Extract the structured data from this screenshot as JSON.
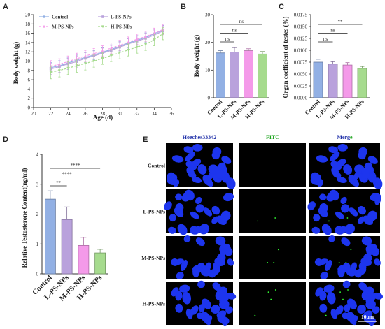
{
  "colors": {
    "control": "#92b0e4",
    "lps": "#b9a2dc",
    "mps": "#f49ae9",
    "hps": "#a6db8e",
    "cell_blue": "#1d35ee",
    "fitc_green": "#30ff30",
    "hoechst_title": "#1f2fa8",
    "fitc_title": "#1aa31a"
  },
  "chart_data": [
    {
      "panel": "A",
      "type": "line",
      "xlabel": "Age (d)",
      "ylabel": "Body weight (g)",
      "xlim": [
        20,
        36
      ],
      "ylim": [
        0,
        20
      ],
      "xticks": [
        20,
        22,
        24,
        26,
        28,
        30,
        32,
        34,
        36
      ],
      "yticks": [
        0,
        2,
        4,
        6,
        8,
        10,
        12,
        14,
        16,
        18,
        20
      ],
      "x": [
        22,
        23,
        24,
        25,
        26,
        27,
        28,
        29,
        30,
        31,
        32,
        33,
        34,
        35
      ],
      "legend_placement": "top-left",
      "series": [
        {
          "name": "Control",
          "key": "control",
          "marker": "circle",
          "dash": "",
          "values": [
            8.6,
            9.0,
            9.6,
            10.2,
            10.8,
            11.3,
            11.9,
            12.5,
            13.2,
            13.9,
            14.5,
            15.1,
            15.9,
            16.7
          ],
          "err": [
            1.1,
            1.1,
            1.1,
            1.1,
            1.1,
            1.0,
            1.0,
            1.0,
            1.0,
            1.0,
            1.0,
            1.0,
            1.0,
            1.0
          ]
        },
        {
          "name": "L-PS-NPs",
          "key": "lps",
          "marker": "square",
          "dash": "",
          "values": [
            8.3,
            8.8,
            9.4,
            9.9,
            10.6,
            11.1,
            11.7,
            12.3,
            13.0,
            13.7,
            14.3,
            14.9,
            15.6,
            16.5
          ],
          "err": [
            1.2,
            1.2,
            1.2,
            1.2,
            1.2,
            1.1,
            1.1,
            1.1,
            1.1,
            1.1,
            1.1,
            1.1,
            1.1,
            1.1
          ]
        },
        {
          "name": "M-PS-NPs",
          "key": "mps",
          "marker": "triangle",
          "dash": "3,2",
          "values": [
            8.9,
            9.3,
            9.9,
            10.5,
            11.1,
            11.6,
            12.2,
            12.8,
            13.4,
            14.1,
            14.7,
            15.3,
            16.0,
            16.8
          ],
          "err": [
            1.2,
            1.2,
            1.2,
            1.2,
            1.2,
            1.1,
            1.1,
            1.1,
            1.1,
            1.1,
            1.1,
            1.1,
            1.1,
            1.1
          ]
        },
        {
          "name": "H-PS-NPs",
          "key": "hps",
          "marker": "triangle-down",
          "dash": "3,2",
          "values": [
            7.6,
            8.0,
            8.5,
            9.0,
            9.5,
            10.0,
            10.6,
            11.2,
            11.8,
            12.4,
            13.0,
            13.6,
            14.6,
            15.9
          ],
          "err": [
            1.4,
            1.4,
            1.4,
            1.4,
            1.4,
            1.3,
            1.3,
            1.3,
            1.3,
            1.3,
            1.3,
            1.3,
            1.3,
            1.3
          ]
        }
      ]
    },
    {
      "panel": "B",
      "type": "bar",
      "ylabel": "Body weight (g)",
      "ylim": [
        0,
        30
      ],
      "yticks": [
        0,
        10,
        20,
        30
      ],
      "categories": [
        "Control",
        "L-PS-NPs",
        "M-PS-NPs",
        "H-PS-NPs"
      ],
      "values": [
        16.2,
        16.5,
        17.0,
        15.8
      ],
      "err": [
        0.8,
        1.6,
        0.7,
        0.9
      ],
      "significance": [
        {
          "from": 0,
          "to": 1,
          "label": "ns"
        },
        {
          "from": 0,
          "to": 2,
          "label": "ns"
        },
        {
          "from": 0,
          "to": 3,
          "label": "ns"
        }
      ]
    },
    {
      "panel": "C",
      "type": "bar",
      "ylabel": "Organ  coefficient  of  testes (%)",
      "ylim": [
        0,
        0.0175
      ],
      "yticks": [
        0,
        0.0025,
        0.005,
        0.0075,
        0.01,
        0.0125,
        0.015,
        0.0175
      ],
      "ytick_labels": [
        "0.0000",
        "0.0025",
        "0.0050",
        "0.0075",
        "0.0100",
        "0.0125",
        "0.0150",
        "0.0175"
      ],
      "categories": [
        "Control",
        "L-PS-NPs",
        "M-PS-NPs",
        "H-PS-NPs"
      ],
      "values": [
        0.0075,
        0.0071,
        0.0069,
        0.0062
      ],
      "err": [
        0.0006,
        0.0005,
        0.0005,
        0.0004
      ],
      "significance": [
        {
          "from": 0,
          "to": 1,
          "label": "ns"
        },
        {
          "from": 0,
          "to": 2,
          "label": "ns"
        },
        {
          "from": 0,
          "to": 3,
          "label": "**"
        }
      ]
    },
    {
      "panel": "D",
      "type": "bar",
      "ylabel": "Relative Testosterone Content(ng/ml)",
      "ylim": [
        0,
        4
      ],
      "yticks": [
        0,
        1,
        2,
        3,
        4
      ],
      "categories": [
        "Control",
        "L-PS-NPs",
        "M-PS-NPs",
        "H-PS-NPs"
      ],
      "values": [
        2.5,
        1.82,
        0.95,
        0.7
      ],
      "err": [
        0.28,
        0.42,
        0.27,
        0.12
      ],
      "significance": [
        {
          "from": 0,
          "to": 1,
          "label": "**"
        },
        {
          "from": 0,
          "to": 2,
          "label": "****"
        },
        {
          "from": 0,
          "to": 3,
          "label": "****"
        }
      ]
    }
  ],
  "micrograph": {
    "panel": "E",
    "columns": [
      "Hoeches33342",
      "FITC",
      "Merge"
    ],
    "rows": [
      "Control",
      "L-PS-NPs",
      "M-PS-NPs",
      "H-PS-NPs"
    ],
    "scale_bar": "10μm"
  }
}
